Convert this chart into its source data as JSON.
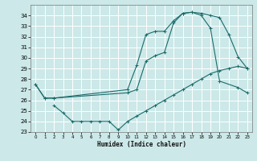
{
  "xlabel": "Humidex (Indice chaleur)",
  "xlim": [
    -0.5,
    23.5
  ],
  "ylim": [
    23,
    35
  ],
  "yticks": [
    23,
    24,
    25,
    26,
    27,
    28,
    29,
    30,
    31,
    32,
    33,
    34
  ],
  "xticks": [
    0,
    1,
    2,
    3,
    4,
    5,
    6,
    7,
    8,
    9,
    10,
    11,
    12,
    13,
    14,
    15,
    16,
    17,
    18,
    19,
    20,
    21,
    22,
    23
  ],
  "bg_color": "#cce8e8",
  "grid_color": "#ffffff",
  "line_color": "#1a6b6b",
  "line1_x": [
    0,
    1,
    2,
    10,
    11,
    12,
    13,
    14,
    15,
    16,
    17,
    18,
    19,
    20,
    21,
    22,
    23
  ],
  "line1_y": [
    27.5,
    26.2,
    26.2,
    27.0,
    29.3,
    32.2,
    32.5,
    32.5,
    33.5,
    34.2,
    34.3,
    34.2,
    34.0,
    33.8,
    32.2,
    30.1,
    29.0
  ],
  "line2_x": [
    0,
    1,
    2,
    10,
    11,
    12,
    13,
    14,
    15,
    16,
    17,
    18,
    19,
    20,
    22,
    23
  ],
  "line2_y": [
    27.5,
    26.2,
    26.2,
    26.7,
    27.0,
    29.7,
    30.2,
    30.5,
    33.3,
    34.2,
    34.3,
    34.0,
    32.8,
    27.8,
    27.2,
    26.7
  ],
  "line3_x": [
    2,
    3,
    4,
    5,
    6,
    7,
    8,
    9,
    10,
    11,
    12,
    13,
    14,
    15,
    16,
    17,
    18,
    19,
    20,
    21,
    22,
    23
  ],
  "line3_y": [
    25.5,
    24.8,
    24.0,
    24.0,
    24.0,
    24.0,
    24.0,
    23.2,
    24.0,
    24.5,
    25.0,
    25.5,
    26.0,
    26.5,
    27.0,
    27.5,
    28.0,
    28.5,
    28.8,
    29.0,
    29.2,
    29.0
  ]
}
